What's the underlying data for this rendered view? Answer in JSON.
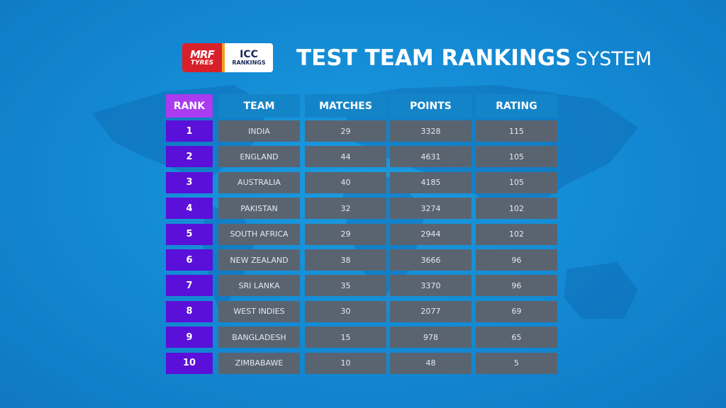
{
  "logo": {
    "brand_line1": "MRF",
    "brand_line2": "TYRES",
    "partner_line1": "ICC",
    "partner_line2": "RANKINGS"
  },
  "title": {
    "main": "TEST TEAM RANKINGS",
    "suffix": "SYSTEM"
  },
  "colors": {
    "rank_header": "#a93cf0",
    "rank_cell": "#5a10d8",
    "data_cell": "#5a6470",
    "header_cell": "#1484c8"
  },
  "table": {
    "headers": [
      "RANK",
      "TEAM",
      "MATCHES",
      "POINTS",
      "RATING"
    ],
    "rows": [
      [
        "1",
        "INDIA",
        "29",
        "3328",
        "115"
      ],
      [
        "2",
        "ENGLAND",
        "44",
        "4631",
        "105"
      ],
      [
        "3",
        "AUSTRALIA",
        "40",
        "4185",
        "105"
      ],
      [
        "4",
        "PAKISTAN",
        "32",
        "3274",
        "102"
      ],
      [
        "5",
        "SOUTH AFRICA",
        "29",
        "2944",
        "102"
      ],
      [
        "6",
        "NEW ZEALAND",
        "38",
        "3666",
        "96"
      ],
      [
        "7",
        "SRI LANKA",
        "35",
        "3370",
        "96"
      ],
      [
        "8",
        "WEST INDIES",
        "30",
        "2077",
        "69"
      ],
      [
        "9",
        "BANGLADESH",
        "15",
        "978",
        "65"
      ],
      [
        "10",
        "ZIMBABAWE",
        "10",
        "48",
        "5"
      ]
    ]
  }
}
